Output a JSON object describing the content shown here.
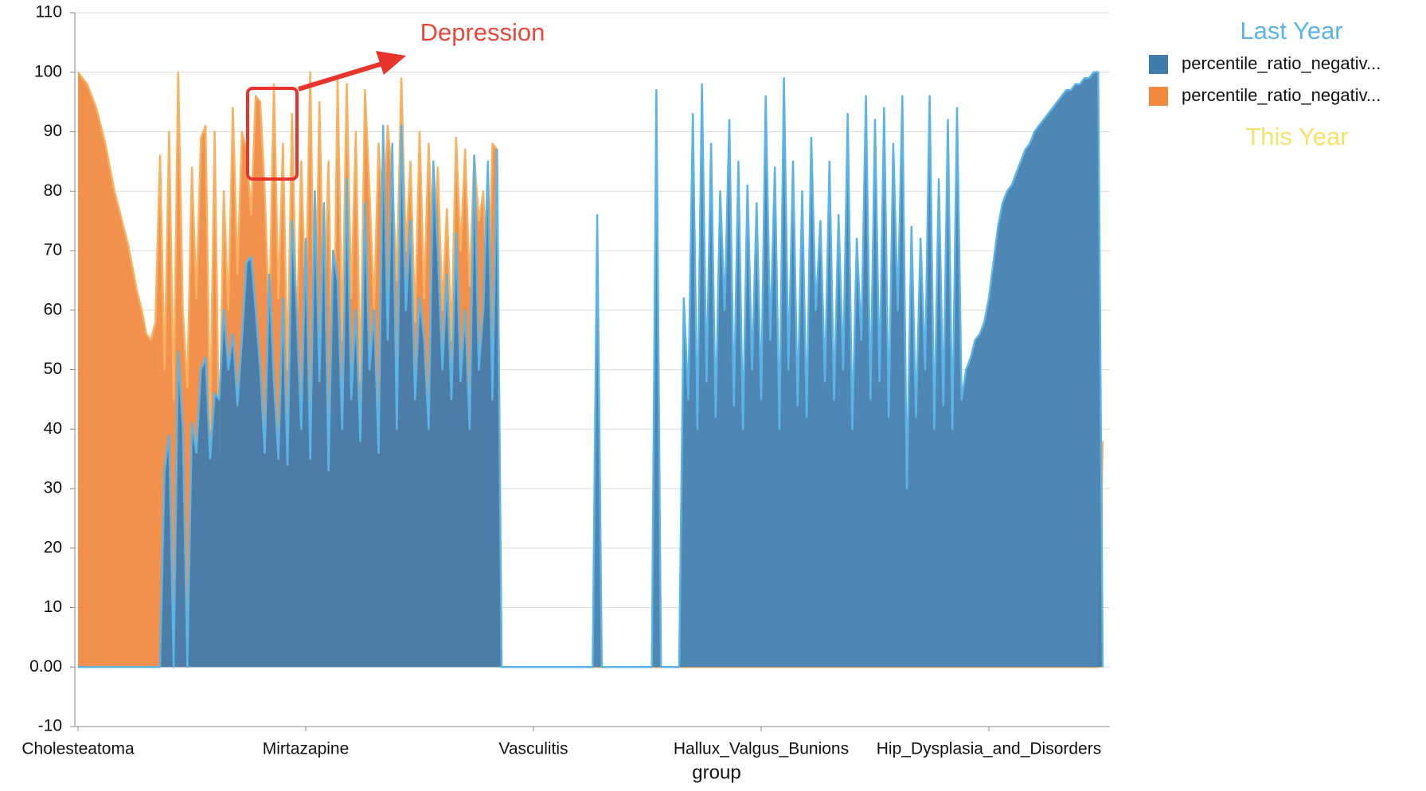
{
  "chart_data": {
    "type": "area",
    "x_label": "group",
    "annotations": [
      "Last Year",
      "This Year",
      "Depression"
    ],
    "categories": [
      "Cholesteatoma",
      null,
      null,
      null,
      null,
      null,
      null,
      null,
      null,
      null,
      null,
      null,
      null,
      null,
      null,
      null,
      null,
      null,
      null,
      null,
      null,
      null,
      null,
      null,
      null,
      null,
      null,
      null,
      null,
      null,
      null,
      null,
      null,
      null,
      null,
      null,
      null,
      null,
      null,
      null,
      null,
      null,
      null,
      null,
      null,
      null,
      null,
      null,
      null,
      null,
      "Mirtazapine",
      null,
      null,
      null,
      null,
      null,
      null,
      null,
      null,
      null,
      null,
      null,
      null,
      null,
      null,
      null,
      null,
      null,
      null,
      null,
      null,
      null,
      null,
      null,
      null,
      null,
      null,
      null,
      null,
      null,
      null,
      null,
      null,
      null,
      null,
      null,
      null,
      null,
      null,
      null,
      null,
      null,
      null,
      null,
      null,
      null,
      null,
      null,
      null,
      null,
      "Vasculitis",
      null,
      null,
      null,
      null,
      null,
      null,
      null,
      null,
      null,
      null,
      null,
      null,
      null,
      null,
      null,
      null,
      null,
      null,
      null,
      null,
      null,
      null,
      null,
      null,
      null,
      null,
      null,
      null,
      null,
      null,
      null,
      null,
      null,
      null,
      null,
      null,
      null,
      null,
      null,
      null,
      null,
      null,
      null,
      null,
      null,
      null,
      null,
      null,
      null,
      "Hallux_Valgus_Bunions",
      null,
      null,
      null,
      null,
      null,
      null,
      null,
      null,
      null,
      null,
      null,
      null,
      null,
      null,
      null,
      null,
      null,
      null,
      null,
      null,
      null,
      null,
      null,
      null,
      null,
      null,
      null,
      null,
      null,
      null,
      null,
      null,
      null,
      null,
      null,
      null,
      null,
      null,
      null,
      null,
      null,
      null,
      null,
      null,
      null,
      null,
      null,
      null,
      null,
      "Hip_Dysplasia_and_Disorders",
      null,
      null,
      null,
      null,
      null,
      null,
      null,
      null,
      null,
      null,
      null,
      null,
      null,
      null,
      null,
      null,
      null,
      null,
      null,
      null,
      null,
      null,
      null,
      null,
      null
    ],
    "series": [
      {
        "name": "percentile_ratio_negativ...",
        "color": "#f0883e",
        "values": [
          100,
          99,
          98,
          96,
          94,
          91,
          88,
          84,
          80,
          77,
          74,
          71,
          67,
          63,
          60,
          56,
          55,
          58,
          86,
          50,
          90,
          45,
          100,
          60,
          47,
          84,
          62,
          89,
          91,
          40,
          90,
          36,
          80,
          60,
          94,
          66,
          90,
          87,
          76,
          96,
          95,
          80,
          58,
          98,
          62,
          88,
          50,
          93,
          56,
          85,
          60,
          100,
          50,
          95,
          58,
          85,
          40,
          99,
          55,
          98,
          62,
          90,
          48,
          97,
          80,
          60,
          88,
          76,
          91,
          82,
          65,
          99,
          70,
          85,
          58,
          90,
          62,
          88,
          68,
          84,
          60,
          77,
          55,
          89,
          70,
          87,
          64,
          86,
          75,
          80,
          60,
          88,
          87,
          0,
          0,
          0,
          0,
          0,
          0,
          0,
          0,
          0,
          0,
          0,
          0,
          0,
          0,
          0,
          0,
          0,
          0,
          0,
          0,
          0,
          0,
          0,
          0,
          0,
          0,
          0,
          0,
          0,
          0,
          0,
          0,
          0,
          0,
          0,
          0,
          0,
          0,
          0,
          0,
          0,
          0,
          0,
          0,
          0,
          0,
          0,
          0,
          0,
          0,
          0,
          0,
          0,
          0,
          0,
          0,
          0,
          0,
          0,
          0,
          0,
          0,
          0,
          0,
          0,
          0,
          0,
          0,
          0,
          0,
          0,
          0,
          0,
          0,
          0,
          0,
          0,
          0,
          0,
          0,
          0,
          0,
          0,
          0,
          0,
          0,
          0,
          0,
          0,
          0,
          0,
          0,
          0,
          0,
          0,
          0,
          0,
          0,
          0,
          0,
          0,
          0,
          0,
          0,
          0,
          0,
          0,
          0,
          0,
          0,
          0,
          0,
          0,
          0,
          0,
          0,
          0,
          0,
          0,
          0,
          0,
          0,
          0,
          0,
          0,
          0,
          0,
          0,
          0,
          0,
          0,
          0,
          38
        ]
      },
      {
        "name": "percentile_ratio_negativ...",
        "color": "#3f7cae",
        "values": [
          0,
          0,
          0,
          0,
          0,
          0,
          0,
          0,
          0,
          0,
          0,
          0,
          0,
          0,
          0,
          0,
          0,
          0,
          0,
          33,
          39,
          0,
          53,
          40,
          0,
          41,
          36,
          50,
          52,
          35,
          46,
          45,
          60,
          50,
          56,
          44,
          55,
          68,
          69,
          60,
          50,
          36,
          66,
          48,
          35,
          62,
          34,
          75,
          60,
          40,
          72,
          35,
          80,
          48,
          78,
          33,
          70,
          65,
          40,
          82,
          45,
          60,
          38,
          78,
          50,
          60,
          36,
          91,
          55,
          88,
          40,
          91,
          60,
          75,
          45,
          62,
          55,
          40,
          85,
          70,
          50,
          66,
          45,
          73,
          48,
          60,
          40,
          86,
          50,
          60,
          85,
          45,
          87,
          0,
          0,
          0,
          0,
          0,
          0,
          0,
          0,
          0,
          0,
          0,
          0,
          0,
          0,
          0,
          0,
          0,
          0,
          0,
          0,
          0,
          76,
          0,
          0,
          0,
          0,
          0,
          0,
          0,
          0,
          0,
          0,
          0,
          0,
          97,
          0,
          0,
          0,
          0,
          0,
          62,
          45,
          93,
          40,
          98,
          48,
          88,
          42,
          80,
          60,
          92,
          44,
          85,
          40,
          81,
          50,
          78,
          45,
          96,
          55,
          84,
          40,
          99,
          50,
          85,
          44,
          80,
          42,
          89,
          60,
          75,
          48,
          85,
          45,
          76,
          50,
          93,
          40,
          72,
          55,
          96,
          45,
          92,
          48,
          94,
          42,
          88,
          60,
          96,
          30,
          74,
          42,
          72,
          50,
          96,
          40,
          82,
          44,
          92,
          40,
          94,
          45,
          50,
          52,
          55,
          56,
          58,
          62,
          68,
          74,
          78,
          80,
          81,
          83,
          85,
          87,
          88,
          90,
          91,
          92,
          93,
          94,
          95,
          96,
          97,
          97,
          98,
          98,
          99,
          99,
          100,
          100,
          0
        ]
      }
    ],
    "ylim": [
      -10,
      110
    ],
    "yticks": [
      -10,
      {
        "value": 0,
        "label": "0.00"
      },
      10,
      20,
      30,
      40,
      50,
      60,
      70,
      80,
      90,
      100,
      110
    ],
    "grid": true,
    "legend": "top-right"
  }
}
